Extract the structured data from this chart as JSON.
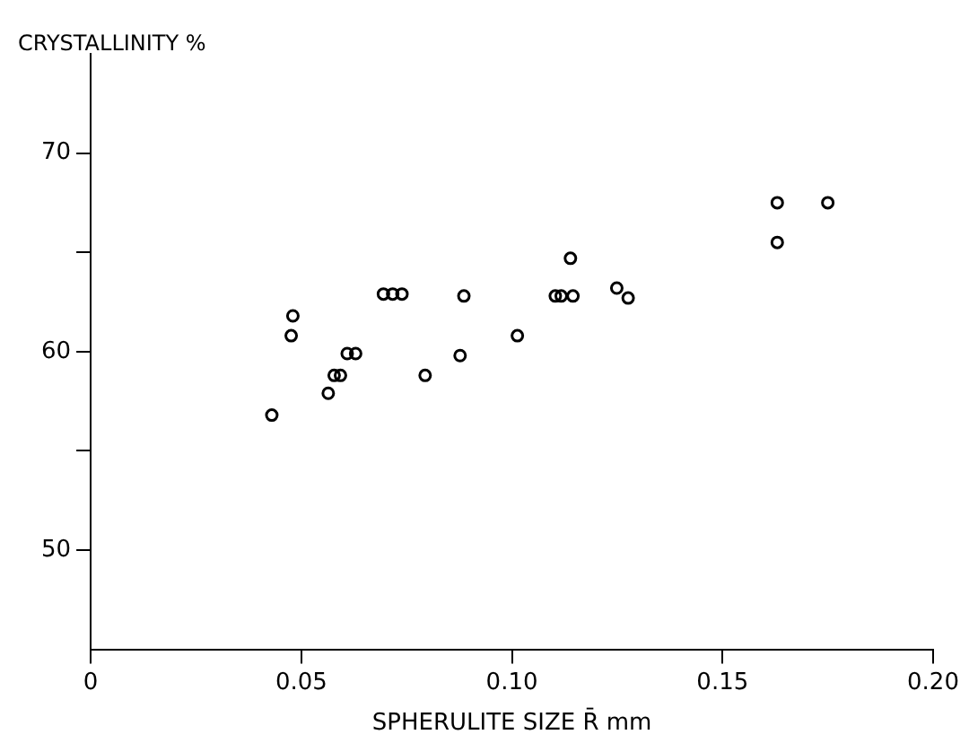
{
  "chart_data": {
    "type": "scatter",
    "ylabel": "CRYSTALLINITY %",
    "xlabel": "SPHERULITE SIZE R̄ mm",
    "x": [
      0.043,
      0.048,
      0.0476,
      0.0564,
      0.0578,
      0.0593,
      0.0609,
      0.0629,
      0.0695,
      0.0717,
      0.0739,
      0.0794,
      0.0877,
      0.0886,
      0.1013,
      0.1103,
      0.1117,
      0.1145,
      0.1139,
      0.1249,
      0.1276,
      0.163,
      0.163,
      0.175
    ],
    "values": [
      56.8,
      61.8,
      60.8,
      57.9,
      58.8,
      58.8,
      59.9,
      59.9,
      62.9,
      62.9,
      62.9,
      58.8,
      59.8,
      62.8,
      60.8,
      62.8,
      62.8,
      62.8,
      64.7,
      63.2,
      62.7,
      67.5,
      65.5,
      67.5
    ],
    "color": "#000000",
    "marker": "circle",
    "grid": false,
    "legend": false,
    "xlim": [
      0,
      0.2
    ],
    "xticks": [
      0,
      0.05,
      {
        "value": 0.1,
        "label": "0.10"
      },
      0.15,
      {
        "value": 0.2,
        "label": "0.20"
      }
    ],
    "ylim": [
      45,
      75
    ],
    "yticks": [
      50,
      {
        "value": 55,
        "label": null
      },
      60,
      {
        "value": 65,
        "label": null
      },
      70
    ]
  }
}
